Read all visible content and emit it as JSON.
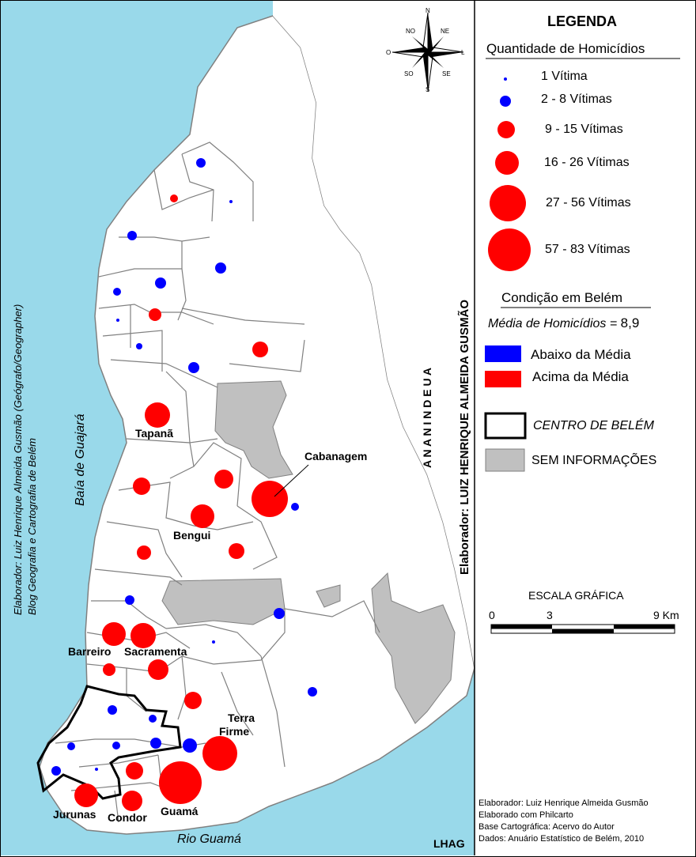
{
  "legend": {
    "title": "LEGENDA",
    "quantity_title": "Quantidade de Homicídios",
    "classes": [
      "1 Vítima",
      "2 - 8 Vítimas",
      "9 - 15 Vítimas",
      "16 - 26 Vítimas",
      "27 - 56 Vítimas",
      "57 - 83 Vítimas"
    ],
    "condition_title": "Condição em Belém",
    "average_label": "Média de Homicídios =",
    "average_value": "8,9",
    "below_label": "Abaixo da Média",
    "above_label": "Acima da Média",
    "centro_label": "CENTRO DE BELÉM",
    "no_info_label": "SEM INFORMAÇÕES",
    "colors": {
      "below": "#0000ff",
      "above": "#ff0000",
      "no_info": "#c0c0c0",
      "water": "#99d9ea"
    }
  },
  "scale": {
    "title": "ESCALA GRÁFICA",
    "ticks": [
      "0",
      "3",
      "9 Km"
    ]
  },
  "compass": {
    "n": "N",
    "s": "S",
    "l": "L",
    "o": "O",
    "ne": "NE",
    "no": "NO",
    "se": "SE",
    "so": "SO"
  },
  "map_labels": {
    "baia": "Baía de Guajará",
    "rio": "Rio Guamá",
    "ananindeua": "A N A N I N D E U A",
    "elaborador_vertical": "Elaborador: LUIZ HENRIQUE ALMEIDA GUSMÃO",
    "side_credit_1": "Elaborador: Luiz Henrique Almeida Gusmão (Geógrafo/Geographer)",
    "side_credit_2": "Blog Geografia e Cartografia de Belém",
    "tapana": "Tapanã",
    "cabanagem": "Cabanagem",
    "bengui": "Bengui",
    "barreiro": "Barreiro",
    "sacramenta": "Sacramenta",
    "terra_firme_1": "Terra",
    "terra_firme_2": "Firme",
    "jurunas": "Jurunas",
    "condor": "Condor",
    "guama": "Guamá",
    "lhag": "LHAG"
  },
  "credits": [
    "Elaborador: Luiz Henrique Almeida Gusmão",
    "Elaborado com Philcarto",
    "Base Cartográfica: Acervo do Autor",
    "Dados: Anuário Estatístico de Belém, 2010"
  ]
}
